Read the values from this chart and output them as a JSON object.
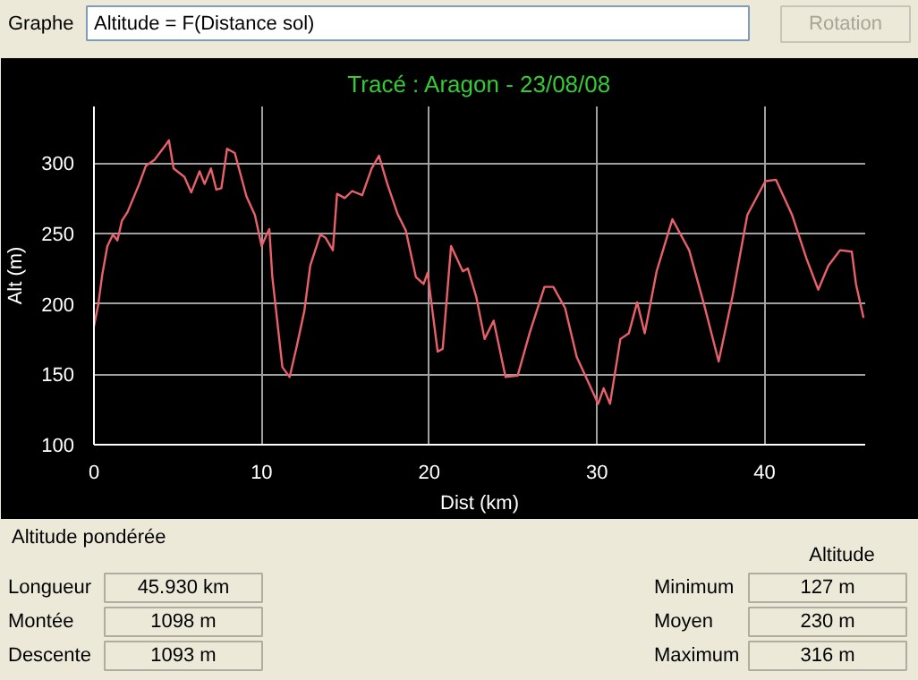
{
  "chart_data": {
    "type": "line",
    "title": "Tracé : Aragon - 23/08/08",
    "xlabel": "Dist (km)",
    "ylabel": "Alt (m)",
    "annotations": [
      "Graphe",
      "Altitude = F(Distance sol)",
      "Rotation",
      "Altitude pondérée",
      "Altitude",
      "Longueur",
      "45.930 km",
      "Montée",
      "1098 m",
      "Descente",
      "1093 m",
      "Minimum",
      "127 m",
      "Moyen",
      "230 m",
      "Maximum",
      "316 m"
    ],
    "xlim": [
      0,
      46
    ],
    "ylim": [
      100,
      340
    ],
    "xticks": [
      0,
      10,
      20,
      30,
      40
    ],
    "yticks": [
      100,
      150,
      200,
      250,
      300
    ],
    "grid": true,
    "marker": "none",
    "line_style": "solid",
    "series": [
      {
        "color": "#e8606a",
        "x": [
          0,
          0.25,
          0.5,
          0.8,
          1.13,
          1.4,
          1.67,
          2.0,
          2.7,
          3.1,
          3.6,
          4.3,
          4.47,
          4.75,
          5.4,
          5.8,
          6.3,
          6.6,
          6.98,
          7.3,
          7.6,
          7.94,
          8.4,
          9.1,
          9.6,
          10.0,
          10.3,
          10.46,
          10.64,
          11.24,
          11.67,
          12.1,
          12.55,
          12.9,
          13.5,
          13.8,
          14.25,
          14.5,
          14.96,
          15.4,
          16.0,
          16.56,
          17.0,
          17.5,
          18.1,
          18.6,
          19.2,
          19.66,
          19.9,
          20.5,
          20.8,
          21.3,
          22.0,
          22.3,
          22.8,
          23.3,
          23.84,
          24.55,
          25.27,
          25.98,
          26.87,
          27.4,
          28.1,
          28.8,
          29.5,
          30.07,
          30.4,
          30.78,
          31.4,
          31.9,
          32.4,
          32.85,
          33.56,
          34.5,
          35.5,
          36.4,
          37.26,
          38.08,
          38.97,
          40.04,
          40.68,
          41.64,
          42.5,
          43.2,
          43.8,
          44.5,
          45.2,
          45.45,
          45.9
        ],
        "values": [
          184,
          199,
          221,
          241,
          249,
          245,
          259,
          265,
          285,
          298,
          302,
          313,
          316,
          296,
          290,
          279,
          294,
          285,
          296,
          281,
          282,
          310,
          307,
          276,
          263,
          241,
          249,
          253,
          219,
          155,
          148,
          170,
          195,
          227,
          249,
          247,
          238,
          278,
          275,
          280,
          277,
          296,
          305,
          285,
          264,
          252,
          219,
          214,
          222,
          166,
          168,
          241,
          223,
          225,
          205,
          175,
          188,
          148,
          149,
          179,
          212,
          212,
          197,
          162,
          144,
          129,
          140,
          129,
          175,
          179,
          201,
          179,
          223,
          260,
          238,
          199,
          159,
          205,
          263,
          287,
          288,
          263,
          232,
          210,
          227,
          238,
          237,
          214,
          190
        ]
      }
    ]
  }
}
